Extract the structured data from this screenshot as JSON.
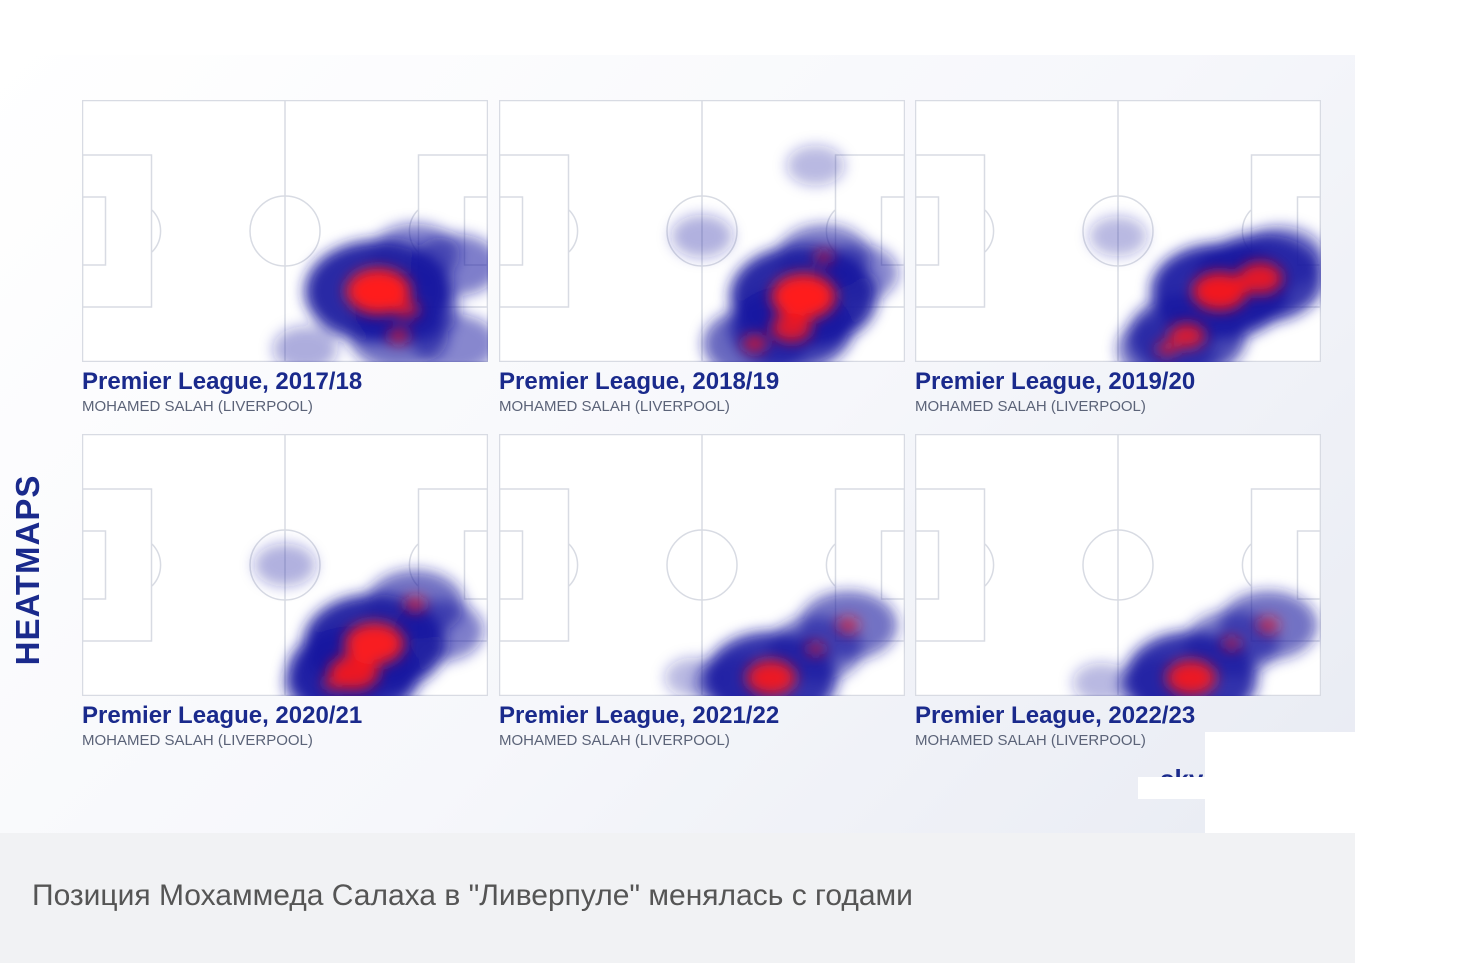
{
  "side_title": "HEATMAPS",
  "caption": "Позиция Мохаммеда Салаха в \"Ливерпуле\" менялась с годами",
  "logo_text": "sky",
  "colors": {
    "title": "#1a2a8c",
    "subtitle": "#5b6378",
    "pitch_lines": "#d8dbe3",
    "heat_low": "#1a1aa0",
    "heat_high": "#ff1a1a",
    "caption_bg": "#f1f2f4"
  },
  "chart_data": [
    {
      "type": "heatmap",
      "title": "Premier League, 2017/18",
      "subtitle": "MOHAMED SALAH (LIVERPOOL)",
      "hotspots": [
        {
          "x": 0.73,
          "y": 0.73,
          "intensity": 1.0
        },
        {
          "x": 0.8,
          "y": 0.8,
          "intensity": 0.55
        },
        {
          "x": 0.78,
          "y": 0.9,
          "intensity": 0.5
        },
        {
          "x": 0.82,
          "y": 0.59,
          "intensity": 0.4
        },
        {
          "x": 0.92,
          "y": 0.63,
          "intensity": 0.4
        },
        {
          "x": 0.92,
          "y": 0.93,
          "intensity": 0.35
        },
        {
          "x": 0.55,
          "y": 0.95,
          "intensity": 0.15
        }
      ]
    },
    {
      "type": "heatmap",
      "title": "Premier League, 2018/19",
      "subtitle": "MOHAMED SALAH (LIVERPOOL)",
      "hotspots": [
        {
          "x": 0.75,
          "y": 0.75,
          "intensity": 1.0
        },
        {
          "x": 0.72,
          "y": 0.87,
          "intensity": 0.75
        },
        {
          "x": 0.63,
          "y": 0.93,
          "intensity": 0.55
        },
        {
          "x": 0.8,
          "y": 0.6,
          "intensity": 0.45
        },
        {
          "x": 0.88,
          "y": 0.66,
          "intensity": 0.35
        },
        {
          "x": 0.5,
          "y": 0.52,
          "intensity": 0.12
        },
        {
          "x": 0.78,
          "y": 0.25,
          "intensity": 0.08
        }
      ]
    },
    {
      "type": "heatmap",
      "title": "Premier League, 2019/20",
      "subtitle": "MOHAMED SALAH (LIVERPOOL)",
      "hotspots": [
        {
          "x": 0.75,
          "y": 0.73,
          "intensity": 0.9
        },
        {
          "x": 0.85,
          "y": 0.68,
          "intensity": 0.8
        },
        {
          "x": 0.67,
          "y": 0.9,
          "intensity": 0.7
        },
        {
          "x": 0.62,
          "y": 0.95,
          "intensity": 0.5
        },
        {
          "x": 0.9,
          "y": 0.6,
          "intensity": 0.4
        },
        {
          "x": 0.5,
          "y": 0.52,
          "intensity": 0.08
        }
      ]
    },
    {
      "type": "heatmap",
      "title": "Premier League, 2020/21",
      "subtitle": "MOHAMED SALAH (LIVERPOOL)",
      "hotspots": [
        {
          "x": 0.72,
          "y": 0.8,
          "intensity": 0.95
        },
        {
          "x": 0.67,
          "y": 0.91,
          "intensity": 0.85
        },
        {
          "x": 0.62,
          "y": 0.95,
          "intensity": 0.5
        },
        {
          "x": 0.82,
          "y": 0.65,
          "intensity": 0.5
        },
        {
          "x": 0.88,
          "y": 0.75,
          "intensity": 0.4
        },
        {
          "x": 0.5,
          "y": 0.5,
          "intensity": 0.12
        }
      ]
    },
    {
      "type": "heatmap",
      "title": "Premier League, 2021/22",
      "subtitle": "MOHAMED SALAH (LIVERPOOL)",
      "hotspots": [
        {
          "x": 0.67,
          "y": 0.93,
          "intensity": 0.85
        },
        {
          "x": 0.86,
          "y": 0.73,
          "intensity": 0.5
        },
        {
          "x": 0.78,
          "y": 0.82,
          "intensity": 0.45
        },
        {
          "x": 0.58,
          "y": 0.95,
          "intensity": 0.3
        },
        {
          "x": 0.48,
          "y": 0.93,
          "intensity": 0.08
        }
      ]
    },
    {
      "type": "heatmap",
      "title": "Premier League, 2022/23",
      "subtitle": "MOHAMED SALAH (LIVERPOOL)",
      "hotspots": [
        {
          "x": 0.68,
          "y": 0.93,
          "intensity": 0.85
        },
        {
          "x": 0.87,
          "y": 0.73,
          "intensity": 0.5
        },
        {
          "x": 0.78,
          "y": 0.8,
          "intensity": 0.45
        },
        {
          "x": 0.6,
          "y": 0.96,
          "intensity": 0.3
        },
        {
          "x": 0.46,
          "y": 0.95,
          "intensity": 0.08
        }
      ]
    }
  ]
}
